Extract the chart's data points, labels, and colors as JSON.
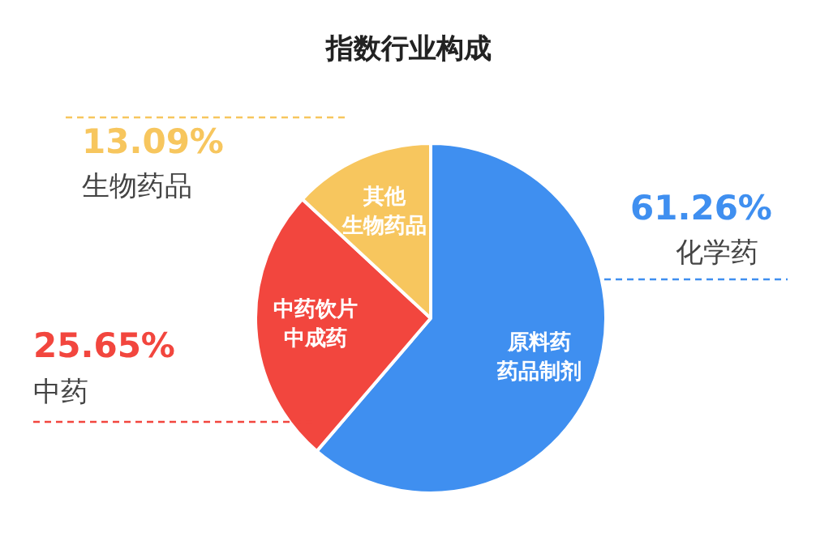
{
  "chart_data": {
    "type": "pie",
    "title": "指数行业构成",
    "categories": [
      "化学药",
      "中药",
      "生物药品"
    ],
    "values": [
      61.26,
      25.65,
      13.09
    ],
    "colors": [
      "#3f8ff0",
      "#f2463e",
      "#f7c65e"
    ],
    "value_labels": [
      "61.26%",
      "25.65%",
      "13.09%"
    ],
    "annotations": [
      "原料药",
      "药品制剂",
      "中药饮片",
      "中成药",
      "其他",
      "生物药品"
    ]
  }
}
